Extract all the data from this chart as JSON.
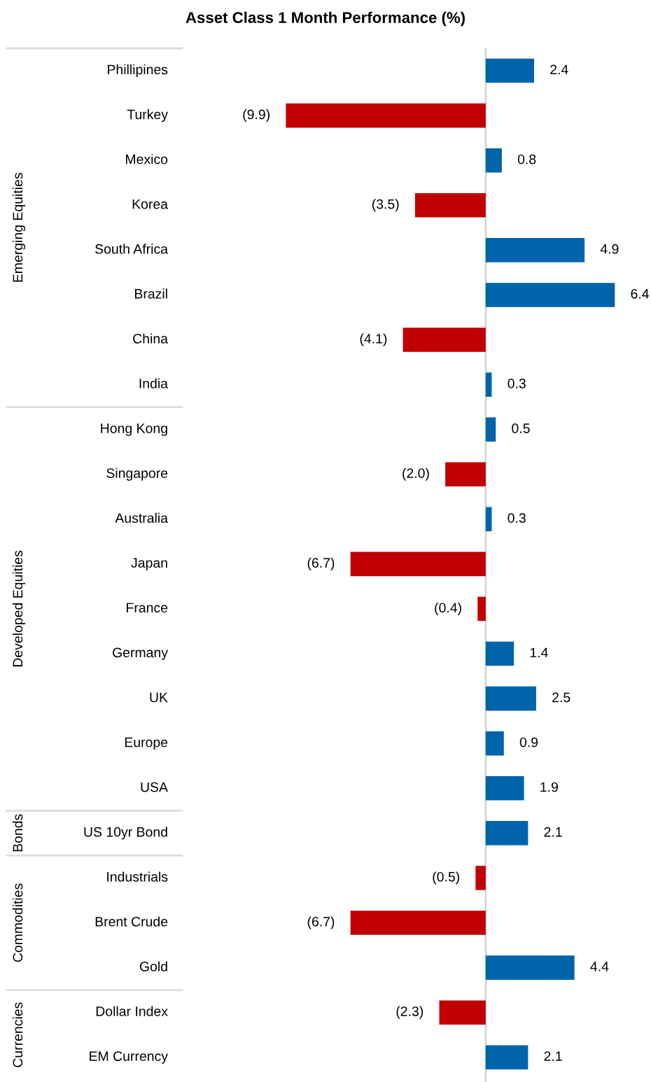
{
  "chart_data": {
    "type": "bar",
    "orientation": "horizontal",
    "title": "Asset Class 1 Month Performance (%)",
    "categories": [
      "Phillipines",
      "Turkey",
      "Mexico",
      "Korea",
      "South Africa",
      "Brazil",
      "China",
      "India",
      "Hong Kong",
      "Singapore",
      "Australia",
      "Japan",
      "France",
      "Germany",
      "UK",
      "Europe",
      "USA",
      "US 10yr Bond",
      "Industrials",
      "Brent Crude",
      "Gold",
      "Dollar Index",
      "EM Currency"
    ],
    "values": [
      2.4,
      -9.9,
      0.8,
      -3.5,
      4.9,
      6.4,
      -4.1,
      0.3,
      0.5,
      -2.0,
      0.3,
      -6.7,
      -0.4,
      1.4,
      2.5,
      0.9,
      1.9,
      2.1,
      -0.5,
      -6.7,
      4.4,
      -2.3,
      2.1
    ],
    "colors": [
      "#0064ab",
      "#c00000",
      "#0064ab",
      "#c00000",
      "#0064ab",
      "#0064ab",
      "#c00000",
      "#0064ab",
      "#0064ab",
      "#c00000",
      "#0064ab",
      "#c00000",
      "#c00000",
      "#0064ab",
      "#0064ab",
      "#0064ab",
      "#0064ab",
      "#0064ab",
      "#c00000",
      "#c00000",
      "#0064ab",
      "#c00000",
      "#0064ab"
    ],
    "value_labels": [
      "2.4",
      "(9.9)",
      "0.8",
      "(3.5)",
      "4.9",
      "6.4",
      "(4.1)",
      "0.3",
      "0.5",
      "(2.0)",
      "0.3",
      "(6.7)",
      "(0.4)",
      "1.4",
      "2.5",
      "0.9",
      "1.9",
      "2.1",
      "(0.5)",
      "(6.7)",
      "4.4",
      "(2.3)",
      "2.1"
    ],
    "annotations": [
      "Emerging Equities",
      "Developed Equities",
      "Bonds",
      "Commodities",
      "Currencies"
    ]
  }
}
